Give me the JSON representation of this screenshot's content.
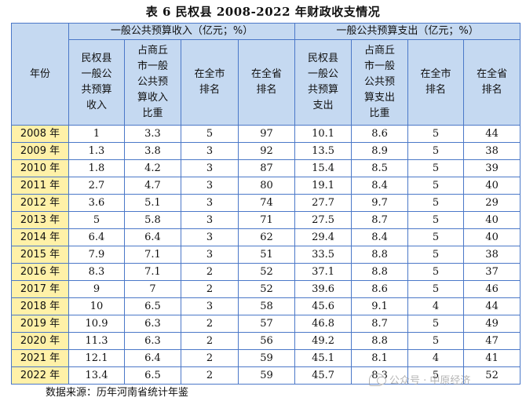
{
  "title": "表 6  民权县 2008-2022 年财政收支情况",
  "headers": {
    "year": "年份",
    "revenue_group": "一般公共预算收入（亿元；%）",
    "expenditure_group": "一般公共预算支出（亿元；%）",
    "rev_cols": [
      "民权县\n一般公\n共预算\n收入",
      "占商丘\n市一般\n公共预\n算收入\n比重",
      "在全市\n排名",
      "在全省\n排名"
    ],
    "exp_cols": [
      "民权县\n一般公\n共预算\n支出",
      "占商丘\n市一般\n公共预\n算支出\n比重",
      "在全市\n排名",
      "在全省\n排名"
    ]
  },
  "rows": [
    [
      "2008 年",
      "1",
      "3.3",
      "5",
      "97",
      "10.1",
      "8.6",
      "5",
      "44"
    ],
    [
      "2009 年",
      "1.3",
      "3.8",
      "3",
      "92",
      "13.5",
      "8.9",
      "5",
      "38"
    ],
    [
      "2010 年",
      "1.8",
      "4.2",
      "3",
      "87",
      "15.4",
      "8.5",
      "5",
      "39"
    ],
    [
      "2011 年",
      "2.7",
      "4.7",
      "3",
      "80",
      "19.1",
      "8.4",
      "5",
      "40"
    ],
    [
      "2012 年",
      "3.6",
      "5.1",
      "3",
      "74",
      "27.7",
      "9.7",
      "5",
      "29"
    ],
    [
      "2013 年",
      "5",
      "5.8",
      "3",
      "71",
      "27.5",
      "8.7",
      "5",
      "40"
    ],
    [
      "2014 年",
      "6.4",
      "6.4",
      "3",
      "62",
      "29.4",
      "8.4",
      "5",
      "40"
    ],
    [
      "2015 年",
      "7.9",
      "7.1",
      "3",
      "51",
      "33.5",
      "8.8",
      "5",
      "38"
    ],
    [
      "2016 年",
      "8.3",
      "7.1",
      "2",
      "52",
      "37.1",
      "8.8",
      "5",
      "37"
    ],
    [
      "2017 年",
      "9",
      "7",
      "2",
      "52",
      "39.6",
      "8.6",
      "5",
      "46"
    ],
    [
      "2018 年",
      "10",
      "6.5",
      "3",
      "58",
      "45.6",
      "9.1",
      "4",
      "44"
    ],
    [
      "2019 年",
      "10.9",
      "6.3",
      "2",
      "57",
      "46.8",
      "8.7",
      "5",
      "49"
    ],
    [
      "2020 年",
      "11.3",
      "6.3",
      "2",
      "56",
      "49.2",
      "8.8",
      "5",
      "47"
    ],
    [
      "2021 年",
      "12.1",
      "6.4",
      "2",
      "59",
      "45.1",
      "8.1",
      "4",
      "41"
    ],
    [
      "2022 年",
      "13.4",
      "6.5",
      "2",
      "59",
      "45.7",
      "8.3",
      "5",
      "52"
    ]
  ],
  "source": "数据来源：历年河南省统计年鉴",
  "watermark": "公众号 · 中原经济",
  "watermark_icon": "wechat-icon",
  "colors": {
    "header_bg": "#c5d9f1",
    "year_bg": "#fff1a8",
    "border": "#4b78c8"
  }
}
